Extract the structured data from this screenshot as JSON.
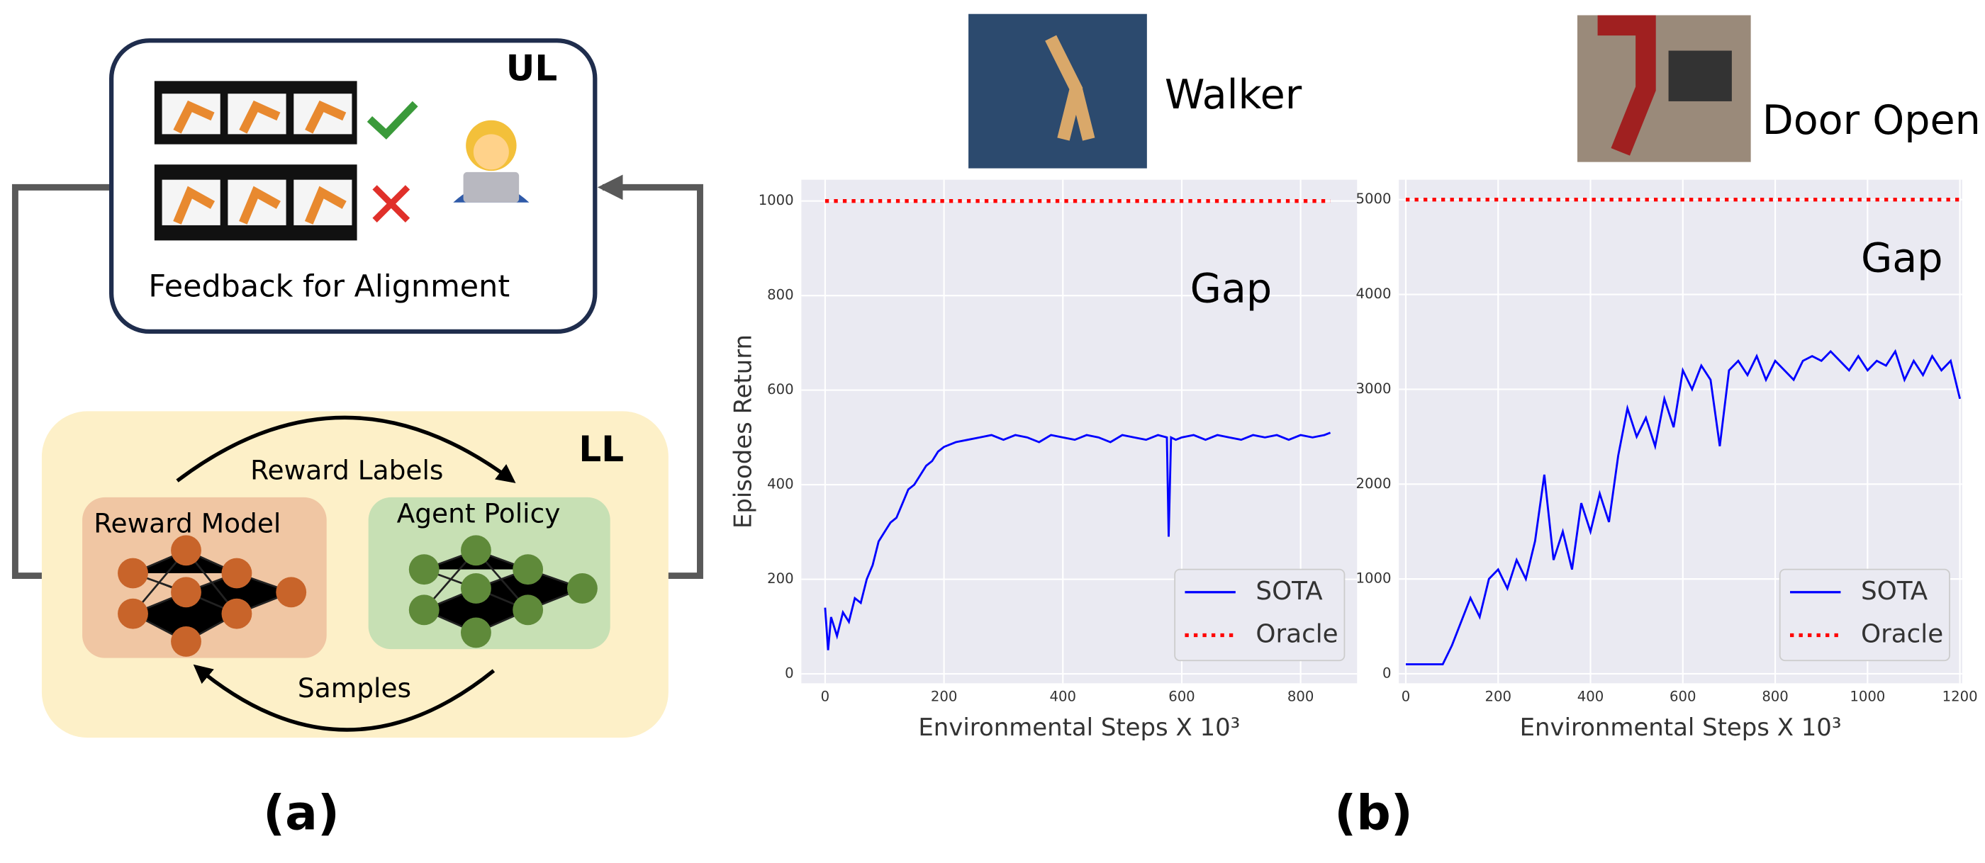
{
  "diagram": {
    "upper_level": {
      "tag": "UL",
      "caption": "Feedback for Alignment"
    },
    "lower_level": {
      "tag": "LL",
      "top_arrow": "Reward Labels",
      "bottom_arrow": "Samples",
      "reward_model": "Reward Model",
      "agent_policy": "Agent Policy"
    },
    "caption": "(a)"
  },
  "figure_b": {
    "caption": "(b)",
    "env_names": [
      "Walker",
      "Door Open"
    ]
  },
  "chart_data": [
    {
      "type": "line",
      "ylabel": "Episodes Return",
      "xlabel": "Environmental Steps X 10³",
      "annotation": "Gap",
      "xlim": [
        -40,
        895
      ],
      "ylim": [
        -20,
        1045
      ],
      "xticks": [
        0,
        200,
        400,
        600,
        800
      ],
      "yticks": [
        0,
        200,
        400,
        600,
        800,
        1000
      ],
      "grid": true,
      "legend": "lower right",
      "series": [
        {
          "name": "SOTA",
          "color": "#0000ff",
          "style": "solid",
          "x": [
            0,
            5,
            10,
            20,
            30,
            40,
            50,
            60,
            70,
            80,
            90,
            100,
            110,
            120,
            130,
            140,
            150,
            160,
            170,
            180,
            190,
            200,
            220,
            240,
            260,
            280,
            300,
            320,
            340,
            360,
            380,
            400,
            420,
            440,
            460,
            480,
            500,
            520,
            540,
            560,
            575,
            578,
            582,
            590,
            600,
            620,
            640,
            660,
            680,
            700,
            720,
            740,
            760,
            780,
            800,
            820,
            840,
            850
          ],
          "values": [
            140,
            50,
            120,
            80,
            130,
            110,
            160,
            150,
            200,
            230,
            280,
            300,
            320,
            330,
            360,
            390,
            400,
            420,
            440,
            450,
            470,
            480,
            490,
            495,
            500,
            505,
            495,
            505,
            500,
            490,
            505,
            500,
            495,
            505,
            500,
            490,
            505,
            500,
            495,
            505,
            500,
            290,
            500,
            495,
            500,
            505,
            495,
            505,
            500,
            495,
            505,
            500,
            505,
            495,
            505,
            500,
            505,
            510
          ]
        },
        {
          "name": "Oracle",
          "color": "#ff0000",
          "style": "dotted",
          "x": [
            0,
            850
          ],
          "values": [
            1000,
            1000
          ]
        }
      ]
    },
    {
      "type": "line",
      "xlabel": "Environmental Steps X 10³",
      "annotation": "Gap",
      "xlim": [
        -15,
        1205
      ],
      "ylim": [
        -100,
        5210
      ],
      "xticks": [
        0,
        200,
        400,
        600,
        800,
        1000,
        1200
      ],
      "yticks": [
        0,
        1000,
        2000,
        3000,
        4000,
        5000
      ],
      "grid": true,
      "legend": "lower right",
      "series": [
        {
          "name": "SOTA",
          "color": "#0000ff",
          "style": "solid",
          "x": [
            0,
            50,
            80,
            100,
            120,
            140,
            160,
            180,
            200,
            220,
            240,
            260,
            280,
            300,
            320,
            340,
            360,
            380,
            400,
            420,
            440,
            460,
            480,
            500,
            520,
            540,
            560,
            580,
            600,
            620,
            640,
            660,
            680,
            700,
            720,
            740,
            760,
            780,
            800,
            820,
            840,
            860,
            880,
            900,
            920,
            940,
            960,
            980,
            1000,
            1020,
            1040,
            1060,
            1080,
            1100,
            1120,
            1140,
            1160,
            1180,
            1200
          ],
          "values": [
            100,
            100,
            100,
            300,
            550,
            800,
            600,
            1000,
            1100,
            900,
            1200,
            1000,
            1400,
            2100,
            1200,
            1500,
            1100,
            1800,
            1500,
            1900,
            1600,
            2300,
            2800,
            2500,
            2700,
            2400,
            2900,
            2600,
            3200,
            3000,
            3250,
            3100,
            2400,
            3200,
            3300,
            3150,
            3350,
            3100,
            3300,
            3200,
            3100,
            3300,
            3350,
            3300,
            3400,
            3300,
            3200,
            3350,
            3200,
            3300,
            3250,
            3400,
            3100,
            3300,
            3150,
            3350,
            3200,
            3300,
            2900
          ]
        },
        {
          "name": "Oracle",
          "color": "#ff0000",
          "style": "dotted",
          "x": [
            0,
            1200
          ],
          "values": [
            5000,
            5000
          ]
        }
      ]
    }
  ]
}
